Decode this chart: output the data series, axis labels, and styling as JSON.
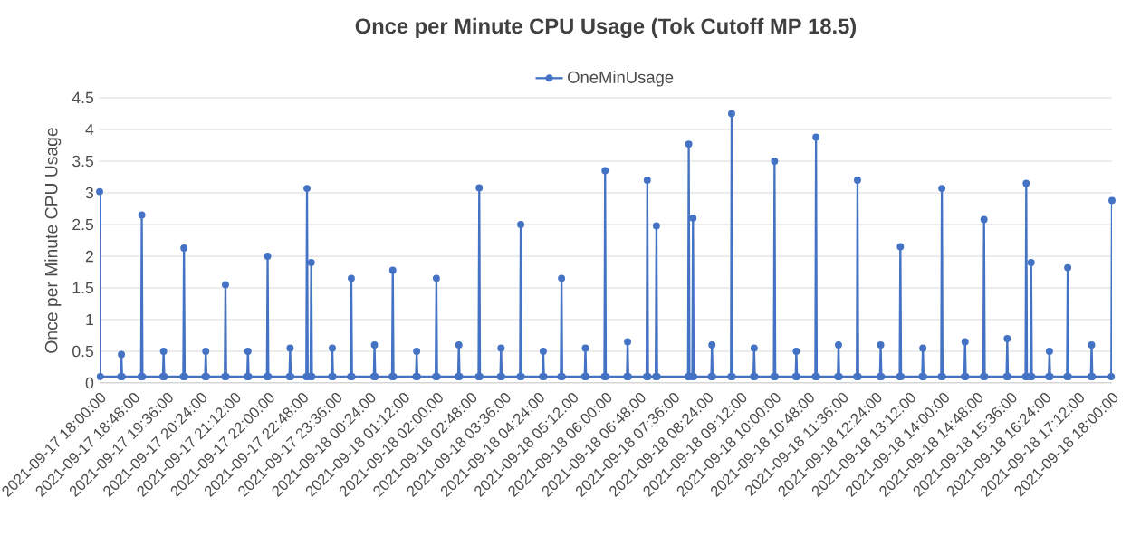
{
  "chart_data": {
    "type": "line",
    "title": "Once per Minute CPU Usage (Tok Cutoff MP 18.5)",
    "ylabel": "Once per Minute CPU Usage",
    "x": [
      "2021-09-17T18:00",
      "2021-09-17T18:01",
      "2021-09-17T18:30",
      "2021-09-17T18:31",
      "2021-09-17T18:32",
      "2021-09-17T18:59",
      "2021-09-17T19:00",
      "2021-09-17T19:01",
      "2021-09-17T19:30",
      "2021-09-17T19:31",
      "2021-09-17T19:32",
      "2021-09-17T19:59",
      "2021-09-17T20:00",
      "2021-09-17T20:01",
      "2021-09-17T20:30",
      "2021-09-17T20:31",
      "2021-09-17T20:32",
      "2021-09-17T20:58",
      "2021-09-17T20:59",
      "2021-09-17T21:00",
      "2021-09-17T21:30",
      "2021-09-17T21:31",
      "2021-09-17T21:32",
      "2021-09-17T21:58",
      "2021-09-17T21:59",
      "2021-09-17T22:00",
      "2021-09-17T22:30",
      "2021-09-17T22:31",
      "2021-09-17T22:32",
      "2021-09-17T22:54",
      "2021-09-17T22:55",
      "2021-09-17T22:56",
      "2021-09-17T23:00",
      "2021-09-17T23:01",
      "2021-09-17T23:02",
      "2021-09-17T23:30",
      "2021-09-17T23:31",
      "2021-09-17T23:32",
      "2021-09-17T23:57",
      "2021-09-17T23:58",
      "2021-09-17T23:59",
      "2021-09-18T00:30",
      "2021-09-18T00:31",
      "2021-09-18T00:32",
      "2021-09-18T00:56",
      "2021-09-18T00:57",
      "2021-09-18T00:58",
      "2021-09-18T01:30",
      "2021-09-18T01:31",
      "2021-09-18T01:32",
      "2021-09-18T01:58",
      "2021-09-18T01:59",
      "2021-09-18T02:00",
      "2021-09-18T02:30",
      "2021-09-18T02:31",
      "2021-09-18T02:32",
      "2021-09-18T02:59",
      "2021-09-18T03:00",
      "2021-09-18T03:01",
      "2021-09-18T03:30",
      "2021-09-18T03:31",
      "2021-09-18T03:32",
      "2021-09-18T03:58",
      "2021-09-18T03:59",
      "2021-09-18T04:00",
      "2021-09-18T04:30",
      "2021-09-18T04:31",
      "2021-09-18T04:32",
      "2021-09-18T04:56",
      "2021-09-18T04:57",
      "2021-09-18T04:58",
      "2021-09-18T05:30",
      "2021-09-18T05:31",
      "2021-09-18T05:32",
      "2021-09-18T05:58",
      "2021-09-18T05:59",
      "2021-09-18T06:00",
      "2021-09-18T06:30",
      "2021-09-18T06:31",
      "2021-09-18T06:32",
      "2021-09-18T06:58",
      "2021-09-18T06:59",
      "2021-09-18T07:00",
      "2021-09-18T07:11",
      "2021-09-18T07:12",
      "2021-09-18T07:13",
      "2021-09-18T07:57",
      "2021-09-18T07:58",
      "2021-09-18T07:59",
      "2021-09-18T08:03",
      "2021-09-18T08:04",
      "2021-09-18T08:05",
      "2021-09-18T08:30",
      "2021-09-18T08:31",
      "2021-09-18T08:32",
      "2021-09-18T08:58",
      "2021-09-18T08:59",
      "2021-09-18T09:00",
      "2021-09-18T09:30",
      "2021-09-18T09:31",
      "2021-09-18T09:32",
      "2021-09-18T09:59",
      "2021-09-18T10:00",
      "2021-09-18T10:01",
      "2021-09-18T10:30",
      "2021-09-18T10:31",
      "2021-09-18T10:32",
      "2021-09-18T10:58",
      "2021-09-18T10:59",
      "2021-09-18T11:00",
      "2021-09-18T11:30",
      "2021-09-18T11:31",
      "2021-09-18T11:32",
      "2021-09-18T11:57",
      "2021-09-18T11:58",
      "2021-09-18T11:59",
      "2021-09-18T12:30",
      "2021-09-18T12:31",
      "2021-09-18T12:32",
      "2021-09-18T12:58",
      "2021-09-18T12:59",
      "2021-09-18T13:00",
      "2021-09-18T13:30",
      "2021-09-18T13:31",
      "2021-09-18T13:32",
      "2021-09-18T13:57",
      "2021-09-18T13:58",
      "2021-09-18T13:59",
      "2021-09-18T14:30",
      "2021-09-18T14:31",
      "2021-09-18T14:32",
      "2021-09-18T14:57",
      "2021-09-18T14:58",
      "2021-09-18T14:59",
      "2021-09-18T15:30",
      "2021-09-18T15:31",
      "2021-09-18T15:32",
      "2021-09-18T15:57",
      "2021-09-18T15:58",
      "2021-09-18T15:59",
      "2021-09-18T16:04",
      "2021-09-18T16:05",
      "2021-09-18T16:06",
      "2021-09-18T16:30",
      "2021-09-18T16:31",
      "2021-09-18T16:32",
      "2021-09-18T16:56",
      "2021-09-18T16:57",
      "2021-09-18T16:58",
      "2021-09-18T17:30",
      "2021-09-18T17:31",
      "2021-09-18T17:32",
      "2021-09-18T17:59",
      "2021-09-18T18:00"
    ],
    "series": [
      {
        "name": "OneMinUsage",
        "color": "#4472c4",
        "values": [
          3.02,
          0.1,
          0.1,
          0.45,
          0.1,
          0.1,
          2.65,
          0.1,
          0.1,
          0.5,
          0.1,
          0.1,
          2.13,
          0.1,
          0.1,
          0.5,
          0.1,
          0.1,
          1.55,
          0.1,
          0.1,
          0.5,
          0.1,
          0.1,
          2.0,
          0.1,
          0.1,
          0.55,
          0.1,
          0.1,
          3.07,
          0.1,
          0.1,
          1.9,
          0.1,
          0.1,
          0.55,
          0.1,
          0.1,
          1.65,
          0.1,
          0.1,
          0.6,
          0.1,
          0.1,
          1.78,
          0.1,
          0.1,
          0.5,
          0.1,
          0.1,
          1.65,
          0.1,
          0.1,
          0.6,
          0.1,
          0.1,
          3.08,
          0.1,
          0.1,
          0.55,
          0.1,
          0.1,
          2.5,
          0.1,
          0.1,
          0.5,
          0.1,
          0.1,
          1.65,
          0.1,
          0.1,
          0.55,
          0.1,
          0.1,
          3.35,
          0.1,
          0.1,
          0.65,
          0.1,
          0.1,
          3.2,
          0.1,
          0.1,
          2.48,
          0.1,
          0.1,
          3.77,
          0.1,
          0.1,
          2.6,
          0.1,
          0.1,
          0.6,
          0.1,
          0.1,
          4.25,
          0.1,
          0.1,
          0.55,
          0.1,
          0.1,
          3.5,
          0.1,
          0.1,
          0.5,
          0.1,
          0.1,
          3.88,
          0.1,
          0.1,
          0.6,
          0.1,
          0.1,
          3.2,
          0.1,
          0.1,
          0.6,
          0.1,
          0.1,
          2.15,
          0.1,
          0.1,
          0.55,
          0.1,
          0.1,
          3.07,
          0.1,
          0.1,
          0.65,
          0.1,
          0.1,
          2.58,
          0.1,
          0.1,
          0.7,
          0.1,
          0.1,
          3.15,
          0.1,
          0.1,
          1.9,
          0.1,
          0.1,
          0.5,
          0.1,
          0.1,
          1.82,
          0.1,
          0.1,
          0.6,
          0.1,
          0.1,
          2.88
        ]
      }
    ],
    "xlim": [
      "2021-09-17T18:00",
      "2021-09-18T18:00"
    ],
    "xticks": [
      {
        "value": "2021-09-17T18:00",
        "label": "2021-09-17 18:00:00"
      },
      {
        "value": "2021-09-17T18:48",
        "label": "2021-09-17 18:48:00"
      },
      {
        "value": "2021-09-17T19:36",
        "label": "2021-09-17 19:36:00"
      },
      {
        "value": "2021-09-17T20:24",
        "label": "2021-09-17 20:24:00"
      },
      {
        "value": "2021-09-17T21:12",
        "label": "2021-09-17 21:12:00"
      },
      {
        "value": "2021-09-17T22:00",
        "label": "2021-09-17 22:00:00"
      },
      {
        "value": "2021-09-17T22:48",
        "label": "2021-09-17 22:48:00"
      },
      {
        "value": "2021-09-17T23:36",
        "label": "2021-09-17 23:36:00"
      },
      {
        "value": "2021-09-18T00:24",
        "label": "2021-09-18 00:24:00"
      },
      {
        "value": "2021-09-18T01:12",
        "label": "2021-09-18 01:12:00"
      },
      {
        "value": "2021-09-18T02:00",
        "label": "2021-09-18 02:00:00"
      },
      {
        "value": "2021-09-18T02:48",
        "label": "2021-09-18 02:48:00"
      },
      {
        "value": "2021-09-18T03:36",
        "label": "2021-09-18 03:36:00"
      },
      {
        "value": "2021-09-18T04:24",
        "label": "2021-09-18 04:24:00"
      },
      {
        "value": "2021-09-18T05:12",
        "label": "2021-09-18 05:12:00"
      },
      {
        "value": "2021-09-18T06:00",
        "label": "2021-09-18 06:00:00"
      },
      {
        "value": "2021-09-18T06:48",
        "label": "2021-09-18 06:48:00"
      },
      {
        "value": "2021-09-18T07:36",
        "label": "2021-09-18 07:36:00"
      },
      {
        "value": "2021-09-18T08:24",
        "label": "2021-09-18 08:24:00"
      },
      {
        "value": "2021-09-18T09:12",
        "label": "2021-09-18 09:12:00"
      },
      {
        "value": "2021-09-18T10:00",
        "label": "2021-09-18 10:00:00"
      },
      {
        "value": "2021-09-18T10:48",
        "label": "2021-09-18 10:48:00"
      },
      {
        "value": "2021-09-18T11:36",
        "label": "2021-09-18 11:36:00"
      },
      {
        "value": "2021-09-18T12:24",
        "label": "2021-09-18 12:24:00"
      },
      {
        "value": "2021-09-18T13:12",
        "label": "2021-09-18 13:12:00"
      },
      {
        "value": "2021-09-18T14:00",
        "label": "2021-09-18 14:00:00"
      },
      {
        "value": "2021-09-18T14:48",
        "label": "2021-09-18 14:48:00"
      },
      {
        "value": "2021-09-18T15:36",
        "label": "2021-09-18 15:36:00"
      },
      {
        "value": "2021-09-18T16:24",
        "label": "2021-09-18 16:24:00"
      },
      {
        "value": "2021-09-18T17:12",
        "label": "2021-09-18 17:12:00"
      },
      {
        "value": "2021-09-18T18:00",
        "label": "2021-09-18 18:00:00"
      }
    ],
    "ylim": [
      0,
      4.5
    ],
    "yticks": [
      0,
      0.5,
      1,
      1.5,
      2,
      2.5,
      3,
      3.5,
      4,
      4.5
    ],
    "grid": "y",
    "legend": "top",
    "marker": "circle",
    "line_style": "solid"
  }
}
